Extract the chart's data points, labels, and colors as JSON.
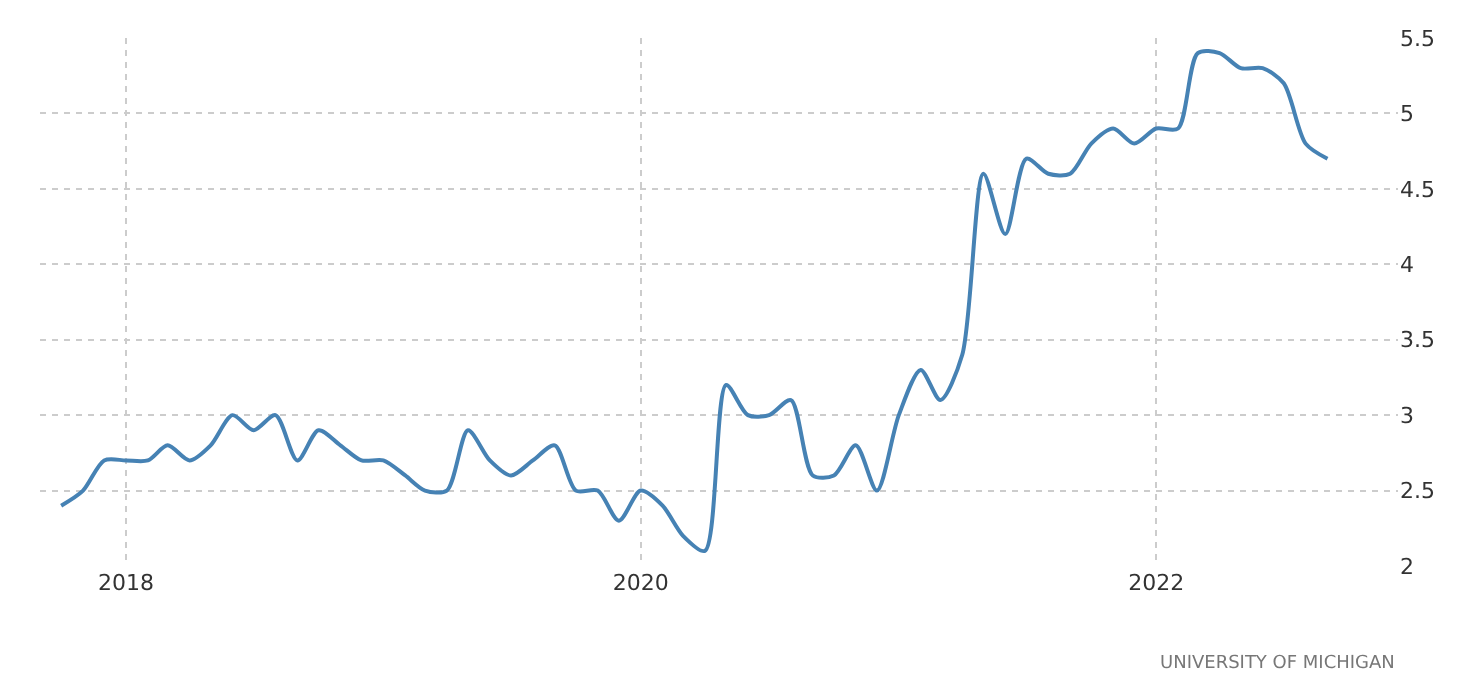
{
  "chart_data": {
    "type": "line",
    "x": [
      "2017-10",
      "2017-11",
      "2017-12",
      "2018-01",
      "2018-02",
      "2018-03",
      "2018-04",
      "2018-05",
      "2018-06",
      "2018-07",
      "2018-08",
      "2018-09",
      "2018-10",
      "2018-11",
      "2018-12",
      "2019-01",
      "2019-02",
      "2019-03",
      "2019-04",
      "2019-05",
      "2019-06",
      "2019-07",
      "2019-08",
      "2019-09",
      "2019-10",
      "2019-11",
      "2019-12",
      "2020-01",
      "2020-02",
      "2020-03",
      "2020-04",
      "2020-05",
      "2020-06",
      "2020-07",
      "2020-08",
      "2020-09",
      "2020-10",
      "2020-11",
      "2020-12",
      "2021-01",
      "2021-02",
      "2021-03",
      "2021-04",
      "2021-05",
      "2021-06",
      "2021-07",
      "2021-08",
      "2021-09",
      "2021-10",
      "2021-11",
      "2021-12",
      "2022-01",
      "2022-02",
      "2022-03",
      "2022-04",
      "2022-05",
      "2022-06",
      "2022-07",
      "2022-08",
      "2022-09"
    ],
    "series": [
      {
        "color": "#4682b4",
        "values": [
          2.4,
          2.5,
          2.7,
          2.7,
          2.7,
          2.8,
          2.7,
          2.8,
          3.0,
          2.9,
          3.0,
          2.7,
          2.9,
          2.8,
          2.7,
          2.7,
          2.6,
          2.5,
          2.5,
          2.9,
          2.7,
          2.6,
          2.7,
          2.8,
          2.5,
          2.5,
          2.3,
          2.5,
          2.4,
          2.2,
          2.1,
          3.2,
          3.0,
          3.0,
          3.1,
          2.6,
          2.6,
          2.8,
          2.5,
          3.0,
          3.3,
          3.1,
          3.4,
          4.6,
          4.2,
          4.7,
          4.6,
          4.6,
          4.8,
          4.9,
          4.8,
          4.9,
          4.9,
          5.4,
          5.4,
          5.3,
          5.3,
          5.2,
          4.8,
          4.7
        ]
      }
    ],
    "xlim": [
      "2017-09-01",
      "2022-12-10"
    ],
    "xticks": [
      {
        "value": "2018-01",
        "label": "2018"
      },
      {
        "value": "2020-01",
        "label": "2020"
      },
      {
        "value": "2022-01",
        "label": "2022"
      }
    ],
    "ylim": [
      2,
      5.5
    ],
    "yticks": [
      2,
      2.5,
      3,
      3.5,
      4,
      4.5,
      5,
      5.5
    ],
    "grid": true,
    "marker": "none",
    "line_style": "solid",
    "annotations": [
      "UNIVERSITY OF MICHIGAN"
    ]
  }
}
